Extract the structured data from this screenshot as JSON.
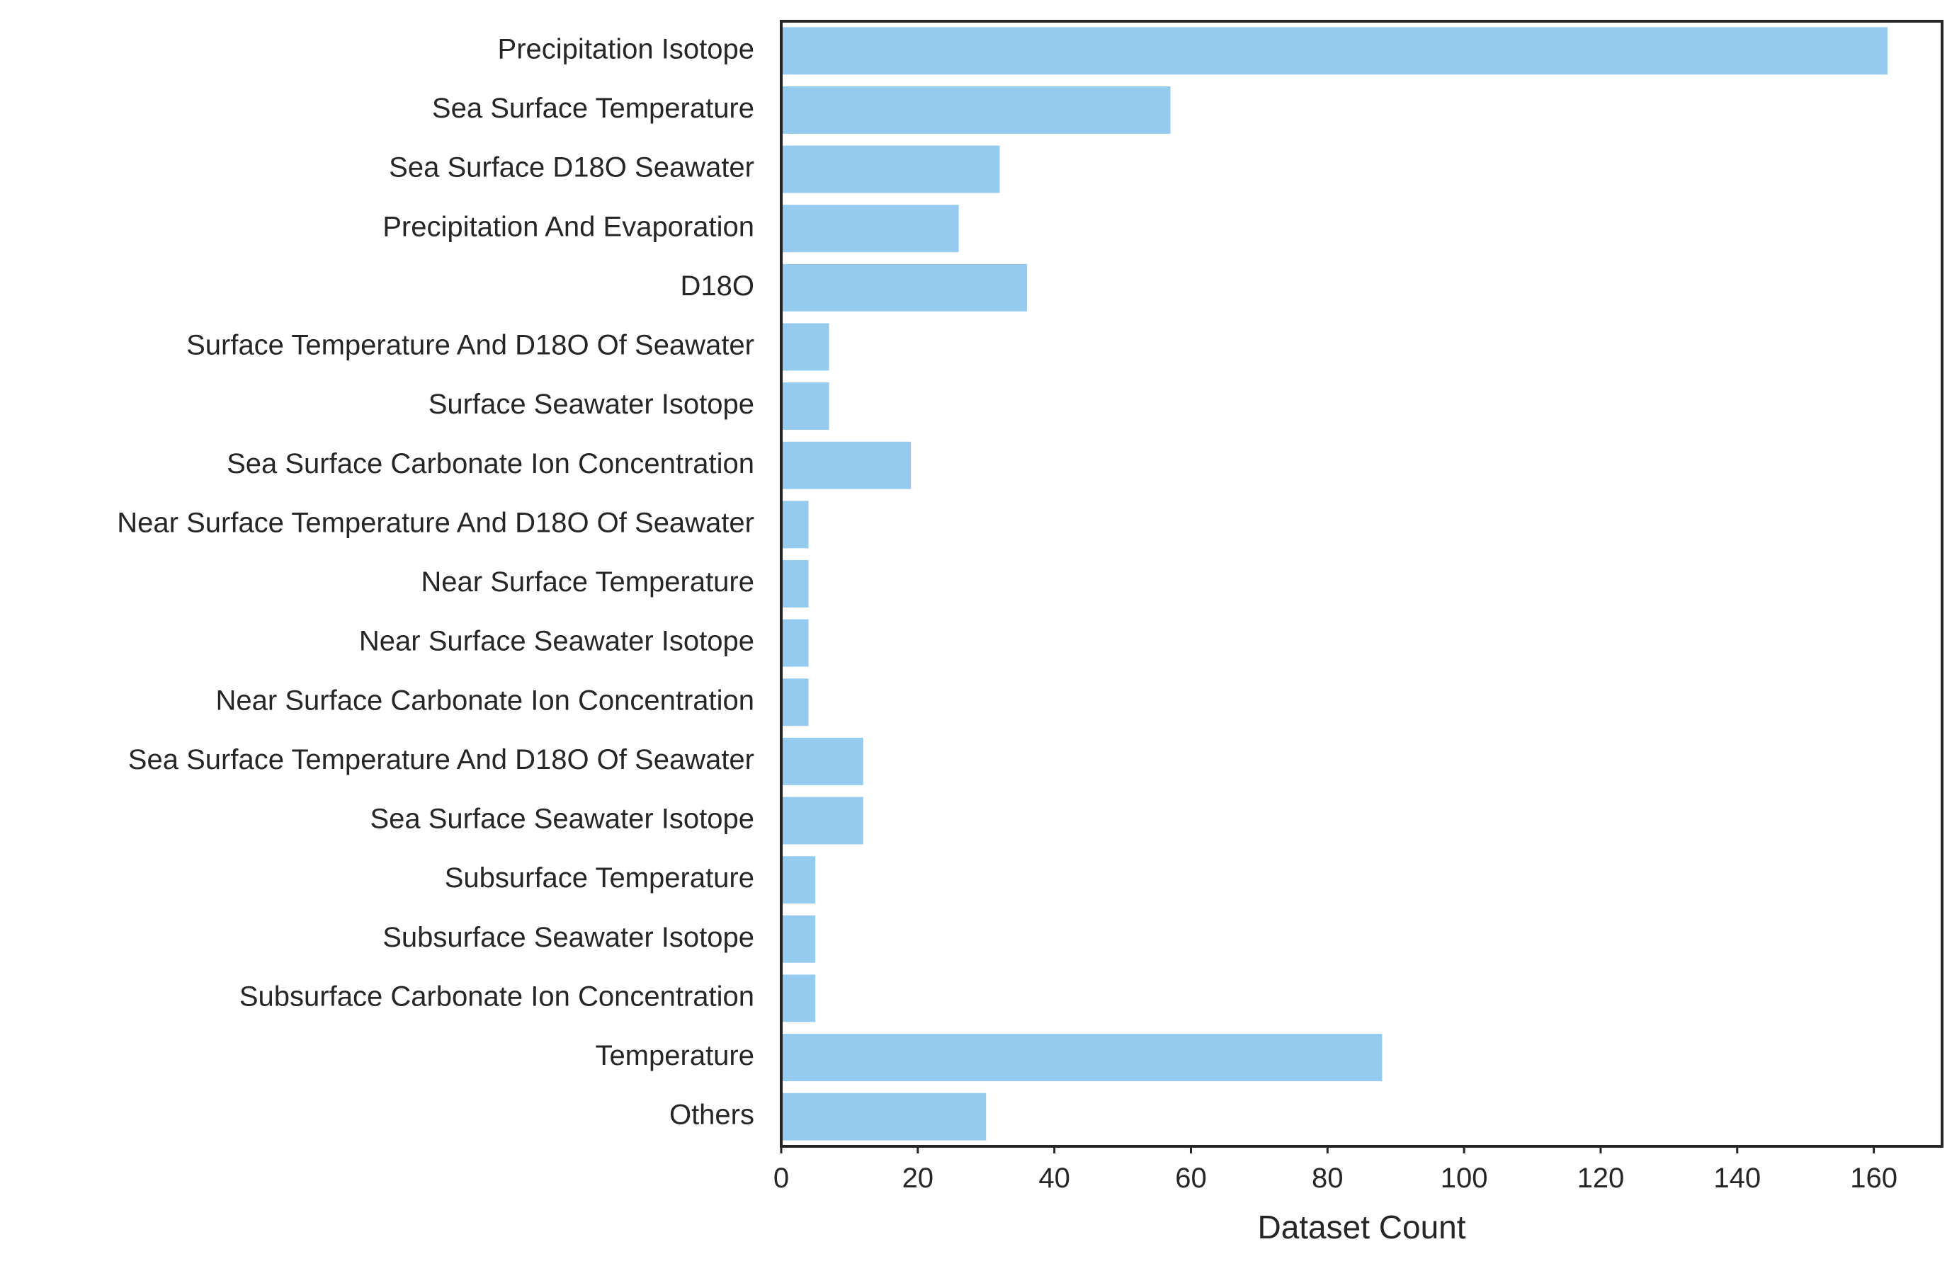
{
  "chart_data": {
    "type": "bar",
    "orientation": "horizontal",
    "categories": [
      "Precipitation Isotope",
      "Sea Surface  Temperature",
      "Sea Surface D18O Seawater",
      "Precipitation And Evaporation",
      "D18O",
      "Surface Temperature And D18O Of Seawater",
      "Surface Seawater Isotope",
      "Sea Surface Carbonate Ion Concentration",
      "Near Surface Temperature And D18O Of Seawater",
      "Near Surface  Temperature",
      "Near Surface Seawater Isotope",
      "Near Surface Carbonate Ion Concentration",
      "Sea Surface Temperature And D18O Of Seawater",
      "Sea Surface Seawater Isotope",
      "Subsurface  Temperature",
      "Subsurface Seawater Isotope",
      "Subsurface Carbonate Ion Concentration",
      "Temperature",
      "Others"
    ],
    "values": [
      162,
      57,
      32,
      26,
      36,
      7,
      7,
      19,
      4,
      4,
      4,
      4,
      12,
      12,
      5,
      5,
      5,
      88,
      30
    ],
    "xlabel": "Dataset Count",
    "ylabel": "",
    "xlim": [
      0,
      170
    ],
    "xticks": [
      0,
      20,
      40,
      60,
      80,
      100,
      120,
      140,
      160
    ],
    "grid": false,
    "bar_color": "#94CBEE",
    "frame_color": "#262626"
  }
}
